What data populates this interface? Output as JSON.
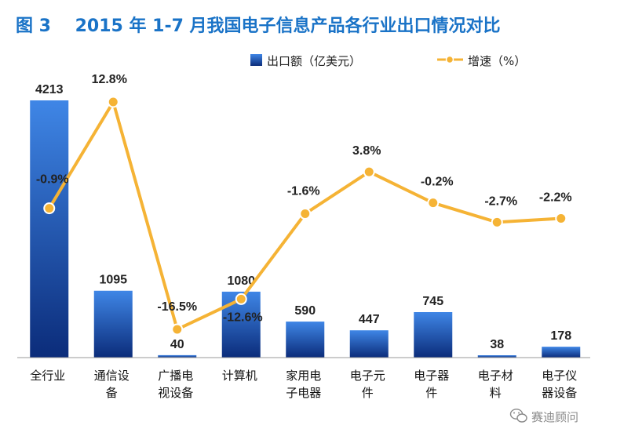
{
  "title": "图 3    2015 年 1-7 月我国电子信息产品各行业出口情况对比",
  "legend": {
    "bar": "出口额（亿美元）",
    "line": "增速（%）"
  },
  "watermark": "赛迪顾问",
  "colors": {
    "title": "#1a73c7",
    "bar_top": "#3f86e6",
    "bar_bottom": "#0b2c7a",
    "line": "#f5b335"
  },
  "chart_data": {
    "type": "bar",
    "categories": [
      [
        "全行业"
      ],
      [
        "通信设",
        "备"
      ],
      [
        "广播电",
        "视设备"
      ],
      [
        "计算机"
      ],
      [
        "家用电",
        "子电器"
      ],
      [
        "电子元",
        "件"
      ],
      [
        "电子器",
        "件"
      ],
      [
        "电子材",
        "料"
      ],
      [
        "电子仪",
        "器设备"
      ]
    ],
    "series": [
      {
        "name": "出口额（亿美元）",
        "type": "bar",
        "values": [
          4213,
          1095,
          40,
          1080,
          590,
          447,
          745,
          38,
          178
        ],
        "labels": [
          "4213",
          "1095",
          "40",
          "1080",
          "590",
          "447",
          "745",
          "38",
          "178"
        ]
      },
      {
        "name": "增速（%）",
        "type": "line",
        "values": [
          -0.9,
          12.8,
          -16.5,
          -12.6,
          -1.6,
          3.8,
          -0.2,
          -2.7,
          -2.2
        ],
        "labels": [
          "-0.9%",
          "12.8%",
          "-16.5%",
          "-12.6%",
          "-1.6%",
          "3.8%",
          "-0.2%",
          "-2.7%",
          "-2.2%"
        ]
      }
    ],
    "bar_ylim": [
      0,
      4213
    ],
    "line_ylim": [
      -16.5,
      12.8
    ],
    "grid": false
  }
}
